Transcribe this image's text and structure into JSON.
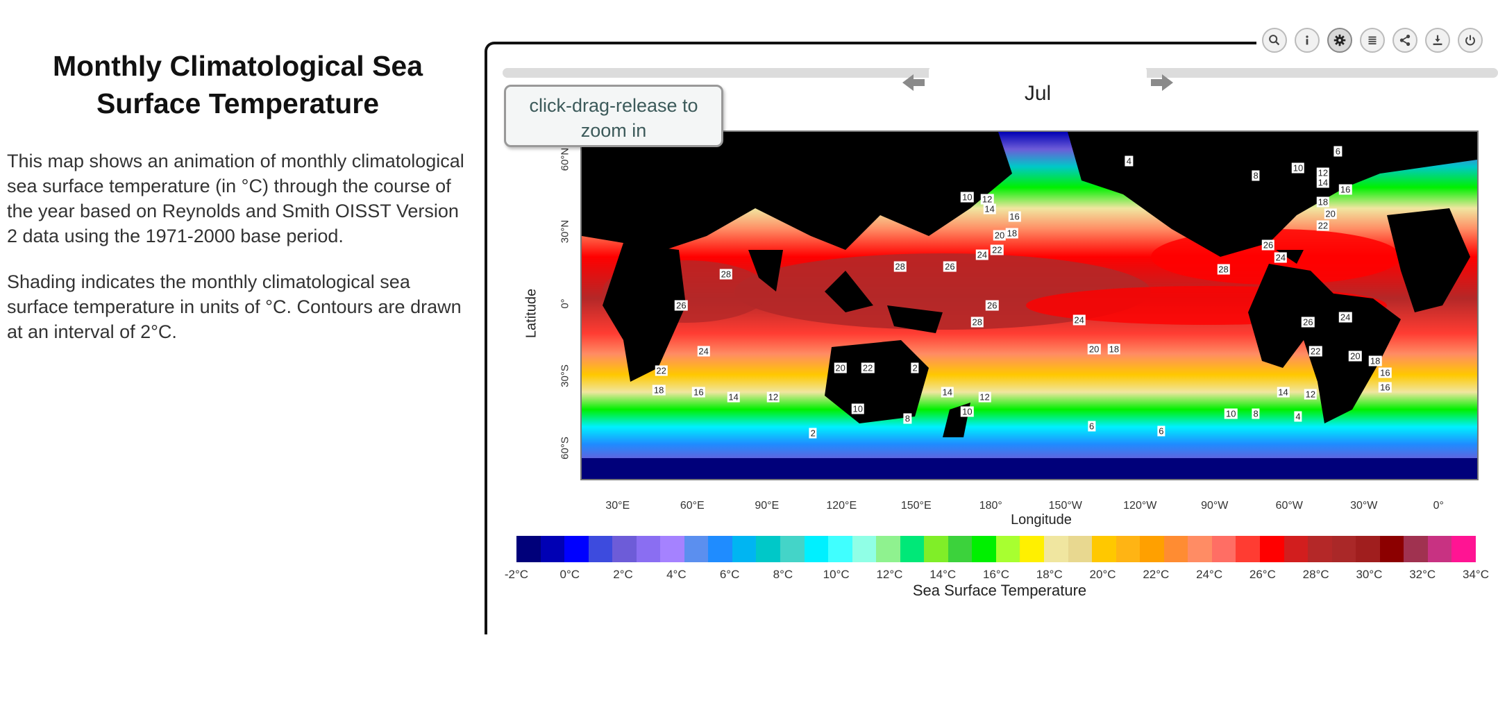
{
  "panel": {
    "title": "Monthly Climatological Sea Surface Temperature",
    "paragraphs": [
      "This map shows an animation of monthly climatological sea surface temperature (in °C) through the course of the year based on Reynolds and Smith OISST Version 2 data using the 1971-2000 base period.",
      "Shading indicates the monthly climatological sea surface temperature in units of °C. Contours are drawn at an interval of 2°C."
    ]
  },
  "toolbar": {
    "tools": [
      "magnifier-icon",
      "info-icon",
      "gear-icon",
      "list-icon",
      "share-icon",
      "download-icon",
      "power-icon"
    ],
    "active": "gear-icon"
  },
  "viewer": {
    "month": "Jul",
    "zoom_tip": "click-drag-release to zoom in"
  },
  "map": {
    "y_axis_title": "Latitude",
    "x_axis_title": "Longitude",
    "y_ticks": [
      "60°N",
      "30°N",
      "0°",
      "30°S",
      "60°S"
    ],
    "x_ticks": [
      "30°E",
      "60°E",
      "90°E",
      "120°E",
      "150°E",
      "180°",
      "150°W",
      "120°W",
      "90°W",
      "60°W",
      "30°W",
      "0°"
    ],
    "contour_labels": [
      {
        "text": "10",
        "lon": 170,
        "lat": 45
      },
      {
        "text": "12",
        "lon": 178,
        "lat": 44
      },
      {
        "text": "14",
        "lon": 179,
        "lat": 40
      },
      {
        "text": "16",
        "lon": 189,
        "lat": 37
      },
      {
        "text": "18",
        "lon": 188,
        "lat": 30
      },
      {
        "text": "20",
        "lon": 183,
        "lat": 29
      },
      {
        "text": "22",
        "lon": 182,
        "lat": 23
      },
      {
        "text": "24",
        "lon": 176,
        "lat": 21
      },
      {
        "text": "26",
        "lon": 163,
        "lat": 16
      },
      {
        "text": "28",
        "lon": 143,
        "lat": 16
      },
      {
        "text": "26",
        "lon": 180,
        "lat": 0
      },
      {
        "text": "28",
        "lon": 174,
        "lat": -7
      },
      {
        "text": "24",
        "lon": 215,
        "lat": -6
      },
      {
        "text": "20",
        "lon": 221,
        "lat": -18
      },
      {
        "text": "18",
        "lon": 229,
        "lat": -18
      },
      {
        "text": "20",
        "lon": 119,
        "lat": -26
      },
      {
        "text": "22",
        "lon": 130,
        "lat": -26
      },
      {
        "text": "24",
        "lon": 64,
        "lat": -19
      },
      {
        "text": "22",
        "lon": 47,
        "lat": -27
      },
      {
        "text": "26",
        "lon": 55,
        "lat": 0
      },
      {
        "text": "28",
        "lon": 73,
        "lat": 13
      },
      {
        "text": "18",
        "lon": 46,
        "lat": -35
      },
      {
        "text": "16",
        "lon": 62,
        "lat": -36
      },
      {
        "text": "14",
        "lon": 76,
        "lat": -38
      },
      {
        "text": "12",
        "lon": 92,
        "lat": -38
      },
      {
        "text": "10",
        "lon": 126,
        "lat": -43
      },
      {
        "text": "8",
        "lon": 146,
        "lat": -47
      },
      {
        "text": "2",
        "lon": 108,
        "lat": -53
      },
      {
        "text": "14",
        "lon": 162,
        "lat": -36
      },
      {
        "text": "12",
        "lon": 177,
        "lat": -38
      },
      {
        "text": "10",
        "lon": 170,
        "lat": -44
      },
      {
        "text": "6",
        "lon": 220,
        "lat": -50
      },
      {
        "text": "6",
        "lon": 248,
        "lat": -52
      },
      {
        "text": "10",
        "lon": 276,
        "lat": -45
      },
      {
        "text": "8",
        "lon": 286,
        "lat": -45
      },
      {
        "text": "4",
        "lon": 303,
        "lat": -46
      },
      {
        "text": "12",
        "lon": 308,
        "lat": -37
      },
      {
        "text": "14",
        "lon": 297,
        "lat": -36
      },
      {
        "text": "16",
        "lon": 338,
        "lat": -28
      },
      {
        "text": "16",
        "lon": 338,
        "lat": -34
      },
      {
        "text": "18",
        "lon": 334,
        "lat": -23
      },
      {
        "text": "20",
        "lon": 326,
        "lat": -21
      },
      {
        "text": "22",
        "lon": 310,
        "lat": -19
      },
      {
        "text": "24",
        "lon": 322,
        "lat": -5
      },
      {
        "text": "26",
        "lon": 307,
        "lat": -7
      },
      {
        "text": "24",
        "lon": 296,
        "lat": 20
      },
      {
        "text": "26",
        "lon": 291,
        "lat": 25
      },
      {
        "text": "28",
        "lon": 273,
        "lat": 15
      },
      {
        "text": "22",
        "lon": 313,
        "lat": 33
      },
      {
        "text": "20",
        "lon": 316,
        "lat": 38
      },
      {
        "text": "18",
        "lon": 313,
        "lat": 43
      },
      {
        "text": "16",
        "lon": 322,
        "lat": 48
      },
      {
        "text": "14",
        "lon": 313,
        "lat": 51
      },
      {
        "text": "12",
        "lon": 313,
        "lat": 55
      },
      {
        "text": "10",
        "lon": 303,
        "lat": 57
      },
      {
        "text": "8",
        "lon": 286,
        "lat": 54
      },
      {
        "text": "6",
        "lon": 319,
        "lat": 64
      },
      {
        "text": "4",
        "lon": 235,
        "lat": 60
      },
      {
        "text": "2",
        "lon": 149,
        "lat": -26
      }
    ]
  },
  "colorbar": {
    "title": "Sea Surface Temperature",
    "ticks": [
      "-2°C",
      "0°C",
      "2°C",
      "4°C",
      "6°C",
      "8°C",
      "10°C",
      "12°C",
      "14°C",
      "16°C",
      "18°C",
      "20°C",
      "22°C",
      "24°C",
      "26°C",
      "28°C",
      "30°C",
      "32°C",
      "34°C"
    ],
    "colors": [
      "#00007a",
      "#0000b4",
      "#0000ff",
      "#3d4bde",
      "#6d5cd8",
      "#8a6ef2",
      "#a582ff",
      "#5b8fef",
      "#1f8cff",
      "#00b5f2",
      "#00c8c8",
      "#44d4c8",
      "#00f0ff",
      "#40ffff",
      "#90ffe6",
      "#8ff28f",
      "#00e878",
      "#80ee28",
      "#3cd23c",
      "#00f000",
      "#a8ff30",
      "#fff000",
      "#f0e6a0",
      "#e8d890",
      "#ffc800",
      "#ffb414",
      "#ffa000",
      "#ff8c32",
      "#ff8c64",
      "#ff6e64",
      "#ff3c32",
      "#ff0000",
      "#d21e1e",
      "#b42828",
      "#aa2828",
      "#a01e1e",
      "#8c0000",
      "#a03250",
      "#c83282",
      "#ff1493"
    ]
  }
}
